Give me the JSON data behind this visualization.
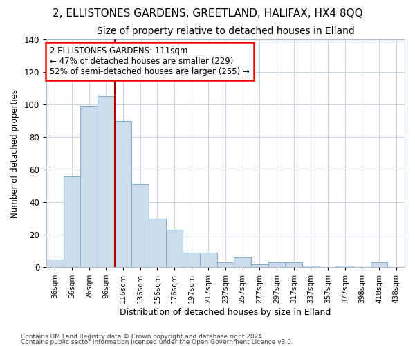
{
  "title": "2, ELLISTONES GARDENS, GREETLAND, HALIFAX, HX4 8QQ",
  "subtitle": "Size of property relative to detached houses in Elland",
  "xlabel": "Distribution of detached houses by size in Elland",
  "ylabel": "Number of detached properties",
  "bar_color": "#ccdcec",
  "bar_edge_color": "#7aaccc",
  "marker_line_color": "#aa0000",
  "categories": [
    "36sqm",
    "56sqm",
    "76sqm",
    "96sqm",
    "116sqm",
    "136sqm",
    "156sqm",
    "176sqm",
    "197sqm",
    "217sqm",
    "237sqm",
    "257sqm",
    "277sqm",
    "297sqm",
    "317sqm",
    "337sqm",
    "357sqm",
    "377sqm",
    "398sqm",
    "418sqm",
    "438sqm"
  ],
  "bar_heights": [
    5,
    56,
    99,
    105,
    90,
    51,
    30,
    23,
    9,
    9,
    3,
    6,
    2,
    3,
    3,
    1,
    0,
    1,
    0,
    3,
    0
  ],
  "ylim": [
    0,
    140
  ],
  "yticks": [
    0,
    20,
    40,
    60,
    80,
    100,
    120,
    140
  ],
  "annotation_text": "2 ELLISTONES GARDENS: 111sqm\n← 47% of detached houses are smaller (229)\n52% of semi-detached houses are larger (255) →",
  "footer_line1": "Contains HM Land Registry data © Crown copyright and database right 2024.",
  "footer_line2": "Contains public sector information licensed under the Open Government Licence v3.0.",
  "background_color": "#ffffff",
  "plot_background": "#ffffff",
  "grid_color": "#c8d4e0",
  "title_fontsize": 11,
  "subtitle_fontsize": 10
}
